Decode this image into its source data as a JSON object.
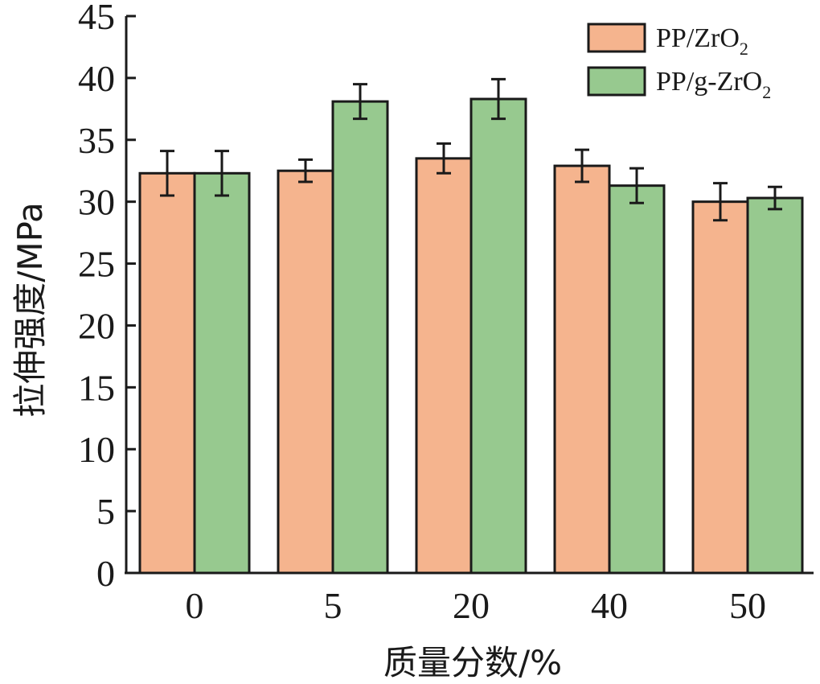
{
  "chart_data": {
    "type": "bar",
    "categories": [
      "0",
      "5",
      "20",
      "40",
      "50"
    ],
    "series": [
      {
        "name": "PP/ZrO2",
        "legend_main": "PP/ZrO",
        "legend_sub": "2",
        "color": "#f5b48e",
        "values": [
          32.3,
          32.5,
          33.5,
          32.9,
          30.0
        ],
        "errors": [
          1.8,
          0.9,
          1.2,
          1.3,
          1.5
        ]
      },
      {
        "name": "PP/g-ZrO2",
        "legend_main": "PP/g-ZrO",
        "legend_sub": "2",
        "color": "#97c98f",
        "values": [
          32.3,
          38.1,
          38.3,
          31.3,
          30.3
        ],
        "errors": [
          1.8,
          1.4,
          1.6,
          1.4,
          0.9
        ]
      }
    ],
    "xlabel": "质量分数/%",
    "ylabel": "拉伸强度/MPa",
    "ylim": [
      0,
      45
    ],
    "yticks": [
      "0",
      "5",
      "10",
      "15",
      "20",
      "25",
      "30",
      "35",
      "40",
      "45"
    ],
    "grid": false,
    "legend_position": "top-right"
  }
}
